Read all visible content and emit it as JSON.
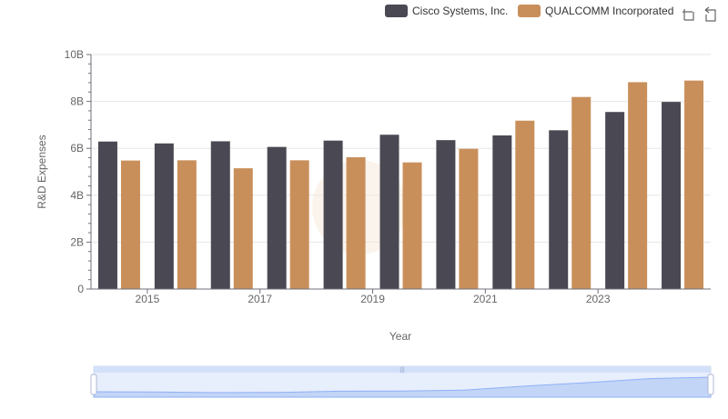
{
  "chart_data": {
    "type": "bar",
    "x": [
      2014,
      2015,
      2016,
      2017,
      2018,
      2019,
      2020,
      2021,
      2022,
      2023,
      2024
    ],
    "x_tick_labels": [
      "2015",
      "2017",
      "2019",
      "2021",
      "2023"
    ],
    "series": [
      {
        "name": "Cisco Systems, Inc.",
        "color": "#4a4953",
        "values": [
          6.29,
          6.21,
          6.3,
          6.06,
          6.33,
          6.58,
          6.35,
          6.55,
          6.77,
          7.55,
          7.98
        ]
      },
      {
        "name": "QUALCOMM Incorporated",
        "color": "#c98f5b",
        "values": [
          5.48,
          5.49,
          5.15,
          5.49,
          5.62,
          5.4,
          5.98,
          7.18,
          8.19,
          8.82,
          8.89
        ]
      }
    ],
    "xlabel": "Year",
    "ylabel": "R&D Expenses",
    "ylim": [
      0,
      10
    ],
    "y_ticks": [
      0,
      2,
      4,
      6,
      8,
      10
    ],
    "y_tick_labels": [
      "0",
      "2B",
      "4B",
      "6B",
      "8B",
      "10B"
    ],
    "grid": true,
    "legend_position": "top-right"
  },
  "toolbar": {
    "icons": [
      "zoom-icon",
      "restore-icon"
    ]
  },
  "colors": {
    "grid": "#e6e6e6",
    "axis": "#6e7079",
    "slider_fill": "#d3e0f9",
    "slider_border": "#acb8d1",
    "slider_line": "#8fb0f7"
  }
}
